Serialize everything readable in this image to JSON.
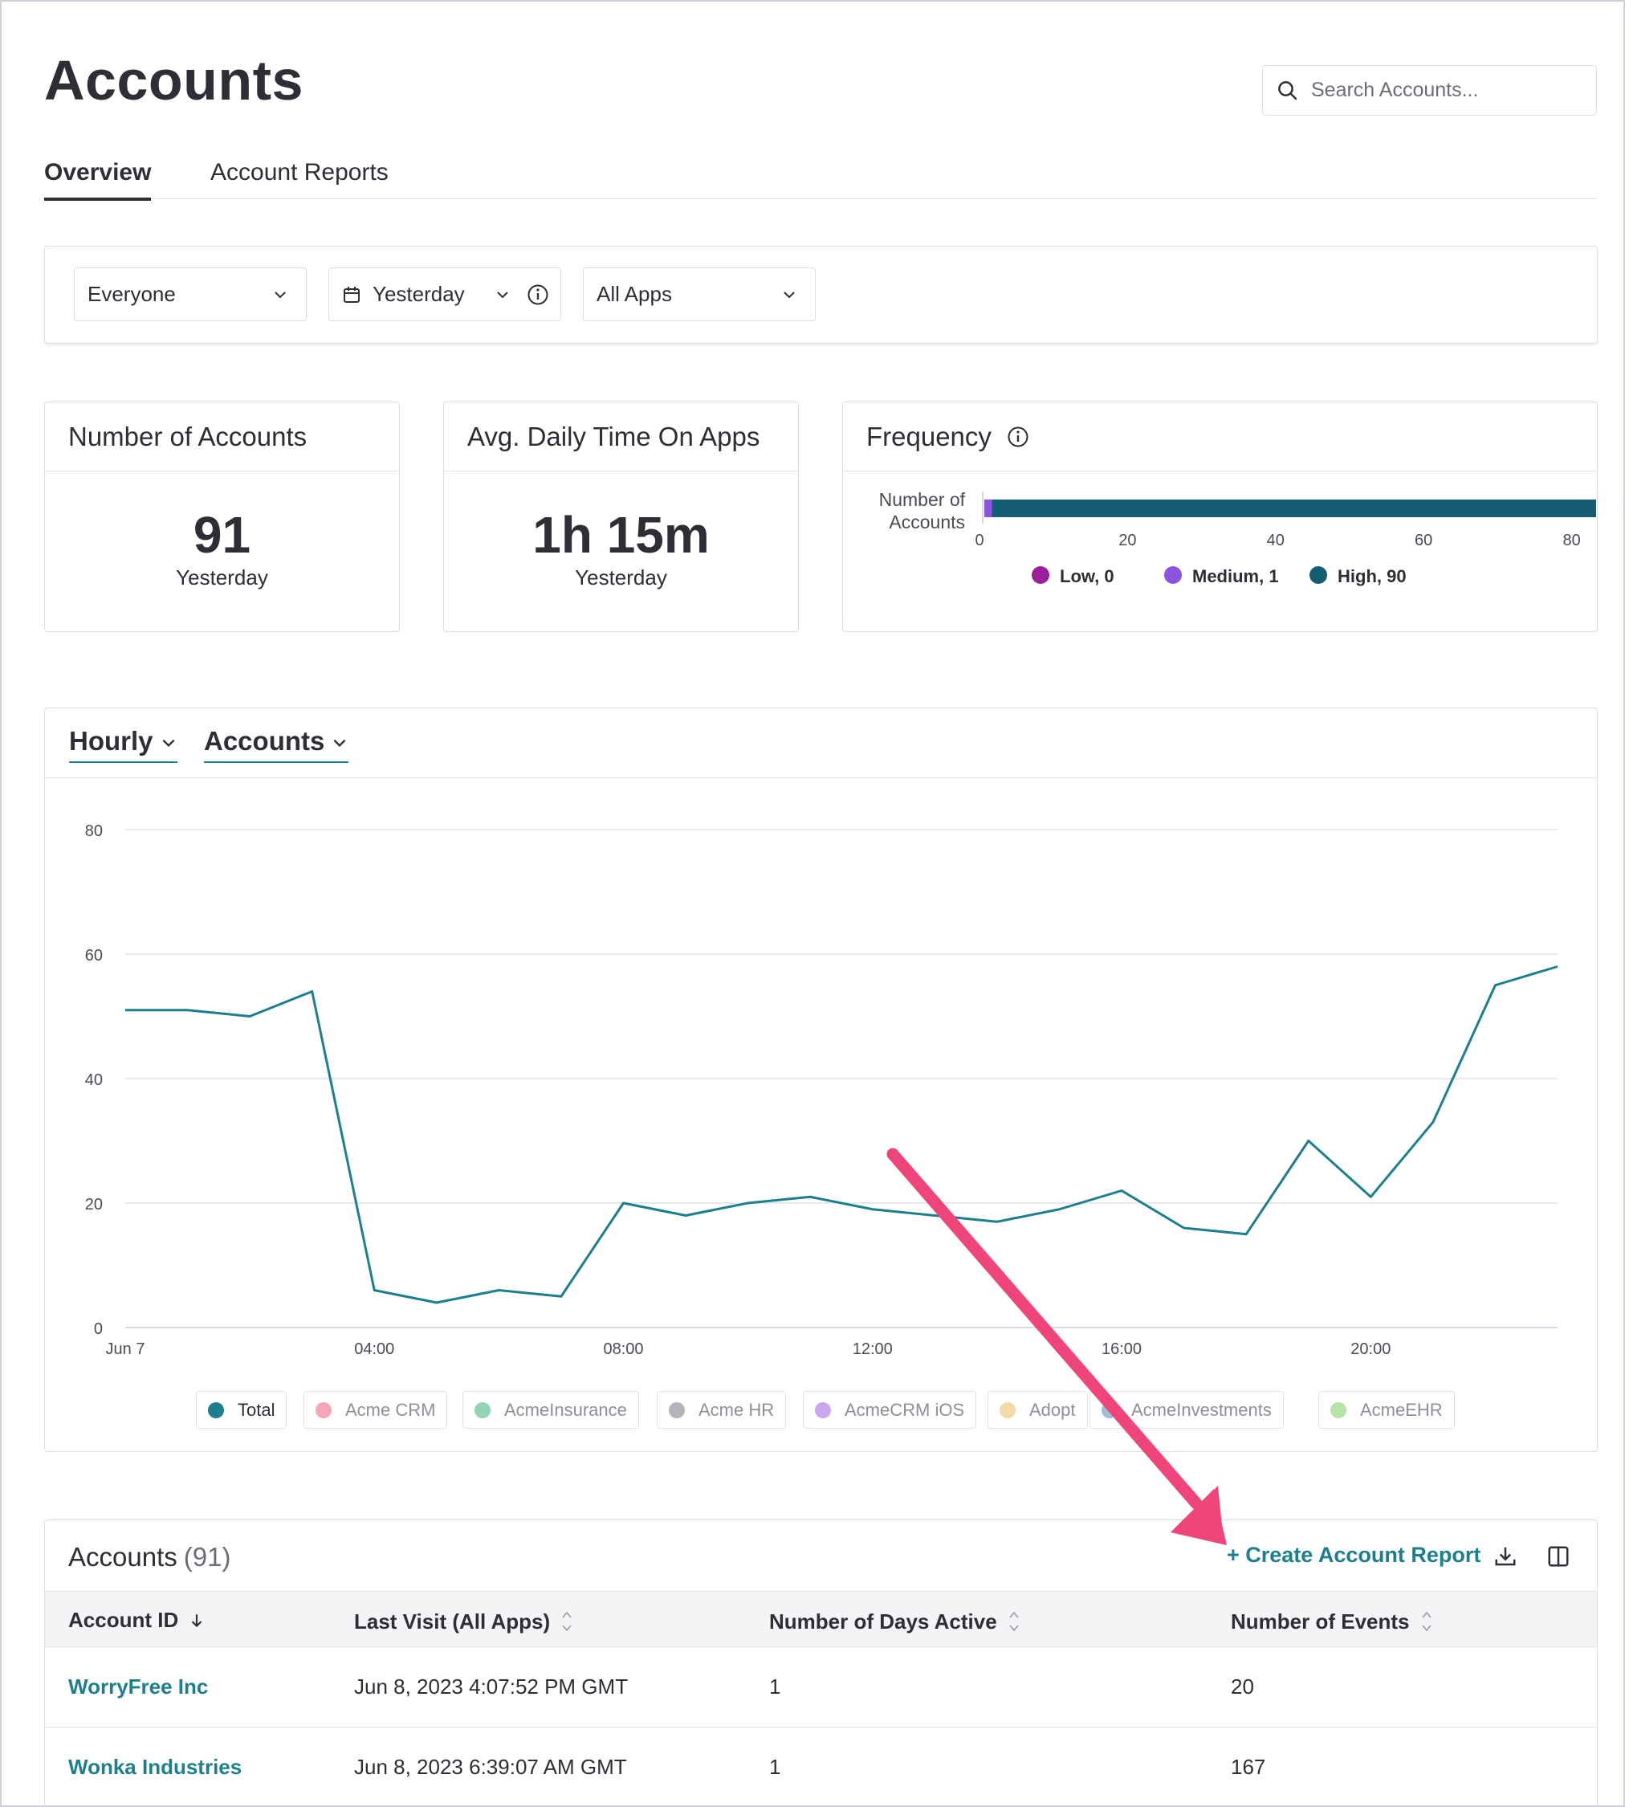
{
  "header": {
    "title": "Accounts",
    "search_placeholder": "Search Accounts..."
  },
  "tabs": [
    {
      "label": "Overview",
      "active": true
    },
    {
      "label": "Account Reports",
      "active": false
    }
  ],
  "filters": {
    "segment": "Everyone",
    "date_range": "Yesterday",
    "apps": "All Apps"
  },
  "stats": {
    "accounts": {
      "title": "Number of Accounts",
      "value": "91",
      "caption": "Yesterday"
    },
    "time": {
      "title": "Avg. Daily Time On Apps",
      "value": "1h 15m",
      "caption": "Yesterday"
    }
  },
  "frequency": {
    "title": "Frequency",
    "row_label_line1": "Number of",
    "row_label_line2": "Accounts",
    "ticks": [
      "0",
      "20",
      "40",
      "60",
      "80"
    ],
    "max": 91,
    "segments": [
      {
        "label": "Low, 0",
        "value": 0,
        "color": "#9a1f9a"
      },
      {
        "label": "Medium, 1",
        "value": 1,
        "color": "#8a54e0"
      },
      {
        "label": "High, 90",
        "value": 90,
        "color": "#145d73"
      }
    ]
  },
  "controls": {
    "granularity": "Hourly",
    "metric": "Accounts"
  },
  "chart_data": {
    "type": "line",
    "x": [
      "Jun 7 00:00",
      "01:00",
      "02:00",
      "03:00",
      "04:00",
      "05:00",
      "06:00",
      "07:00",
      "08:00",
      "09:00",
      "10:00",
      "11:00",
      "12:00",
      "13:00",
      "14:00",
      "15:00",
      "16:00",
      "17:00",
      "18:00",
      "19:00",
      "20:00",
      "21:00",
      "22:00",
      "23:00"
    ],
    "x_tick_labels": [
      "Jun 7",
      "04:00",
      "08:00",
      "12:00",
      "16:00",
      "20:00"
    ],
    "y_ticks": [
      "80",
      "60",
      "40",
      "20",
      "0"
    ],
    "ylim": [
      0,
      80
    ],
    "grid": true,
    "series": [
      {
        "name": "Total",
        "color": "#1b7f8e",
        "values": [
          51,
          51,
          50,
          54,
          6,
          4,
          6,
          5,
          20,
          18,
          20,
          21,
          19,
          18,
          17,
          19,
          22,
          16,
          15,
          30,
          21,
          33,
          55,
          58
        ]
      }
    ],
    "legend": [
      {
        "label": "Total",
        "color": "#1b7f8e",
        "active": true
      },
      {
        "label": "Acme CRM",
        "color": "#f3a7b8",
        "active": false
      },
      {
        "label": "AcmeInsurance",
        "color": "#94d4b4",
        "active": false
      },
      {
        "label": "Acme HR",
        "color": "#b3b4ba",
        "active": false
      },
      {
        "label": "AcmeCRM iOS",
        "color": "#c9a8f0",
        "active": false
      },
      {
        "label": "Adopt",
        "color": "#f5d9a8",
        "active": false
      },
      {
        "label": "AcmeInvestments",
        "color": "#9bbfd6",
        "active": false
      },
      {
        "label": "AcmeEHR",
        "color": "#b5e3a8",
        "active": false
      }
    ]
  },
  "table": {
    "title": "Accounts",
    "count": "(91)",
    "create_label": "+ Create Account Report",
    "columns": [
      "Account ID",
      "Last Visit (All Apps)",
      "Number of Days Active",
      "Number of Events"
    ],
    "rows": [
      {
        "account": "WorryFree Inc",
        "last_visit": "Jun 8, 2023 4:07:52 PM GMT",
        "days": "1",
        "events": "20"
      },
      {
        "account": "Wonka Industries",
        "last_visit": "Jun 8, 2023 6:39:07 AM GMT",
        "days": "1",
        "events": "167"
      }
    ]
  },
  "colors": {
    "accent": "#1b7f8e",
    "annotation_arrow": "#f0457a"
  },
  "icons": [
    "search-icon",
    "chevron-down-icon",
    "calendar-icon",
    "info-icon",
    "sort-arrow-icon",
    "sort-icon",
    "download-icon",
    "columns-icon"
  ]
}
